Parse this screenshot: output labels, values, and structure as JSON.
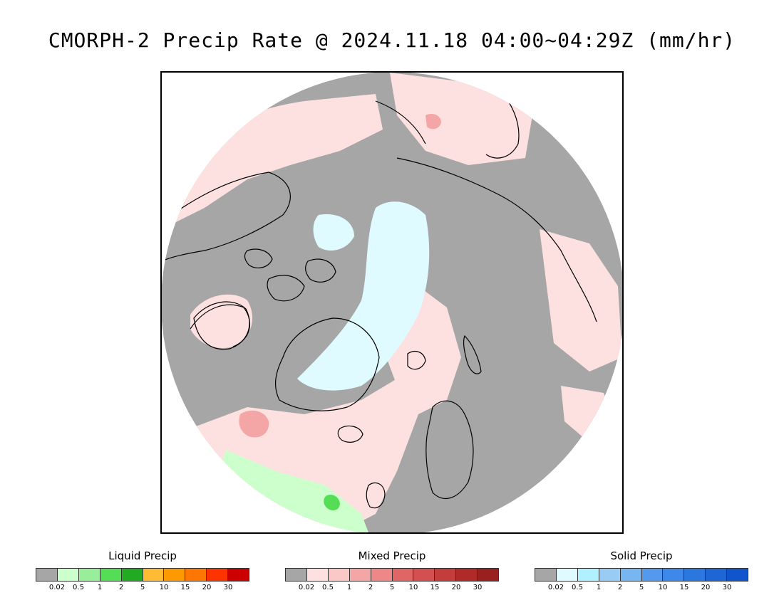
{
  "title": "CMORPH-2 Precip Rate @ 2024.11.18 04:00~04:29Z (mm/hr)",
  "map": {
    "projection": "north-polar-stereographic",
    "colors": {
      "no_precip": "#a6a6a6",
      "mixed_light": "#fde0e0",
      "mixed_medium": "#f4a6a6",
      "solid_light": "#e0fbff",
      "liquid_light": "#ccffcc",
      "liquid_medium": "#55dd55",
      "coastline": "#000000"
    }
  },
  "legends": [
    {
      "title": "Liquid Precip",
      "colors": [
        "#a6a6a6",
        "#ccffcc",
        "#99ee99",
        "#55dd55",
        "#22aa22",
        "#ffbb33",
        "#ff9900",
        "#ff7700",
        "#ff3300",
        "#cc0000"
      ],
      "ticks": [
        "0.02",
        "0.5",
        "1",
        "2",
        "5",
        "10",
        "15",
        "20",
        "30"
      ]
    },
    {
      "title": "Mixed Precip",
      "colors": [
        "#a6a6a6",
        "#fde0e0",
        "#fbc8c8",
        "#f4a6a6",
        "#ee8888",
        "#e06666",
        "#d45050",
        "#c43c3c",
        "#b02a2a",
        "#9a2020"
      ],
      "ticks": [
        "0.02",
        "0.5",
        "1",
        "2",
        "5",
        "10",
        "15",
        "20",
        "30"
      ]
    },
    {
      "title": "Solid Precip",
      "colors": [
        "#a6a6a6",
        "#e0fbff",
        "#b0f0ff",
        "#99ccf5",
        "#77b6f0",
        "#5599ee",
        "#3d88ea",
        "#2a77e0",
        "#1e66d6",
        "#1155cc"
      ],
      "ticks": [
        "0.02",
        "0.5",
        "1",
        "2",
        "5",
        "10",
        "15",
        "20",
        "30"
      ]
    }
  ]
}
